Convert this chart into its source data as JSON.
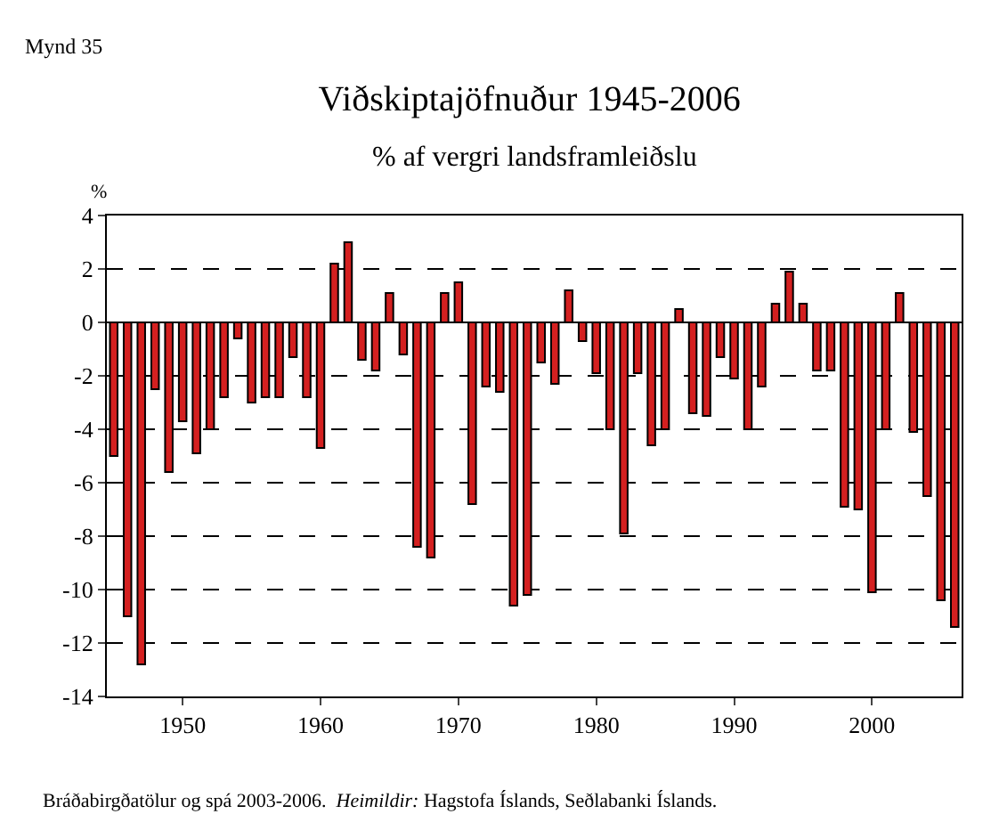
{
  "chart_data": {
    "type": "bar",
    "title": "Viðskiptajöfnuður 1945-2006",
    "subtitle": "% af vergri landsframleiðslu",
    "ylabel": "%",
    "annotations": [
      "Mynd 35",
      "Bráðabirgðatölur og spá 2003-2006.",
      "Heimildir: Hagstofa Íslands, Seðlabanki Íslands."
    ],
    "x": [
      1945,
      1946,
      1947,
      1948,
      1949,
      1950,
      1951,
      1952,
      1953,
      1954,
      1955,
      1956,
      1957,
      1958,
      1959,
      1960,
      1961,
      1962,
      1963,
      1964,
      1965,
      1966,
      1967,
      1968,
      1969,
      1970,
      1971,
      1972,
      1973,
      1974,
      1975,
      1976,
      1977,
      1978,
      1979,
      1980,
      1981,
      1982,
      1983,
      1984,
      1985,
      1986,
      1987,
      1988,
      1989,
      1990,
      1991,
      1992,
      1993,
      1994,
      1995,
      1996,
      1997,
      1998,
      1999,
      2000,
      2001,
      2002,
      2003,
      2004,
      2005,
      2006
    ],
    "values": [
      -5,
      -11,
      -12.8,
      -2.5,
      -5.6,
      -3.7,
      -4.9,
      -4.0,
      -2.8,
      -0.6,
      -3.0,
      -2.8,
      -2.8,
      -1.3,
      -2.8,
      -4.7,
      2.2,
      3.0,
      -1.4,
      -1.8,
      1.1,
      -1.2,
      -8.4,
      -8.8,
      1.1,
      1.5,
      -6.8,
      -2.4,
      -2.6,
      -10.6,
      -10.2,
      -1.5,
      -2.3,
      1.2,
      -0.7,
      -1.9,
      -4.0,
      -7.9,
      -1.9,
      -4.6,
      -4.0,
      0.5,
      -3.4,
      -3.5,
      -1.3,
      -2.1,
      -4.0,
      -2.4,
      0.7,
      1.9,
      0.7,
      -1.8,
      -1.8,
      -6.9,
      -7.0,
      -10.1,
      -4.0,
      1.1,
      -4.1,
      -6.5,
      -10.4,
      -11.4
    ],
    "color": "#d42020",
    "xlim": [
      1944.5,
      2006.5
    ],
    "xticks": [
      1950,
      1960,
      1970,
      1980,
      1990,
      2000
    ],
    "ylim": [
      -14,
      4
    ],
    "yticks": [
      -14,
      -12,
      -10,
      -8,
      -6,
      -4,
      -2,
      0,
      2,
      4
    ],
    "grid": "y"
  }
}
